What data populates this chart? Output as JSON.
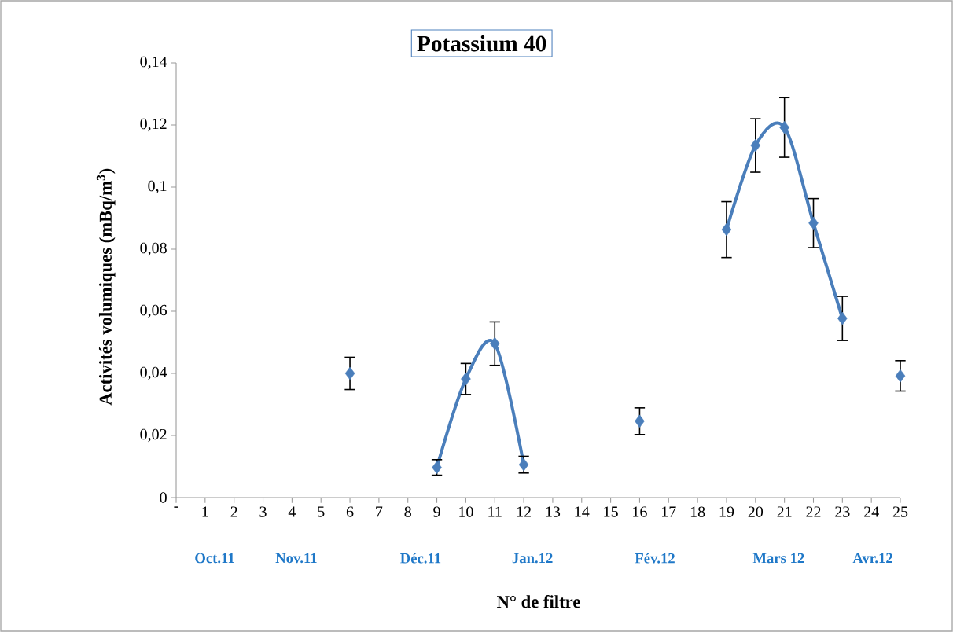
{
  "chart_data": {
    "type": "scatter",
    "title": "Potassium 40",
    "xlabel": "N° de filtre",
    "ylabel": "Activités volumiques (mBq/m$^{3}$)",
    "categories": [
      "-",
      "1",
      "2",
      "3",
      "4",
      "5",
      "6",
      "7",
      "8",
      "9",
      "10",
      "11",
      "12",
      "13",
      "14",
      "15",
      "16",
      "17",
      "18",
      "19",
      "20",
      "21",
      "22",
      "23",
      "24",
      "25"
    ],
    "ylim": [
      0,
      0.14
    ],
    "yticks": [
      0,
      {
        "value": 0.02,
        "label": "0,02"
      },
      {
        "value": 0.04,
        "label": "0,04"
      },
      {
        "value": 0.06,
        "label": "0,06"
      },
      {
        "value": 0.08,
        "label": "0,08"
      },
      {
        "value": 0.1,
        "label": "0,1"
      },
      {
        "value": 0.12,
        "label": "0,12"
      },
      {
        "value": 0.14,
        "label": "0,14"
      }
    ],
    "marker": "diamond",
    "annotations": [
      "Oct.11",
      "Nov.11",
      "Déc.11",
      "Jan.12",
      "Fév.12",
      "Mars 12",
      "Avr.12"
    ],
    "series": [
      {
        "type": "line",
        "color": "#4a7ebb",
        "marker": "none",
        "values": [
          null,
          null,
          null,
          null,
          null,
          null,
          null,
          null,
          null,
          0.0097,
          0.0382,
          0.0496,
          0.0106,
          null,
          null,
          null,
          null,
          null,
          null,
          0.0863,
          0.1134,
          0.1192,
          0.0884,
          0.0577,
          null,
          null
        ]
      },
      {
        "color": "#4a7ebb",
        "values": [
          null,
          null,
          null,
          null,
          null,
          null,
          0.04,
          null,
          null,
          0.0097,
          0.0382,
          0.0496,
          0.0106,
          null,
          null,
          null,
          0.0246,
          null,
          null,
          0.0863,
          0.1134,
          0.1192,
          0.0884,
          0.0577,
          null,
          0.0392
        ],
        "errors": [
          null,
          null,
          null,
          null,
          null,
          null,
          0.0052,
          null,
          null,
          0.0025,
          0.005,
          0.007,
          0.0027,
          null,
          null,
          null,
          0.0043,
          null,
          null,
          0.009,
          0.0086,
          0.0096,
          0.0079,
          0.0071,
          null,
          0.0049
        ]
      }
    ]
  }
}
